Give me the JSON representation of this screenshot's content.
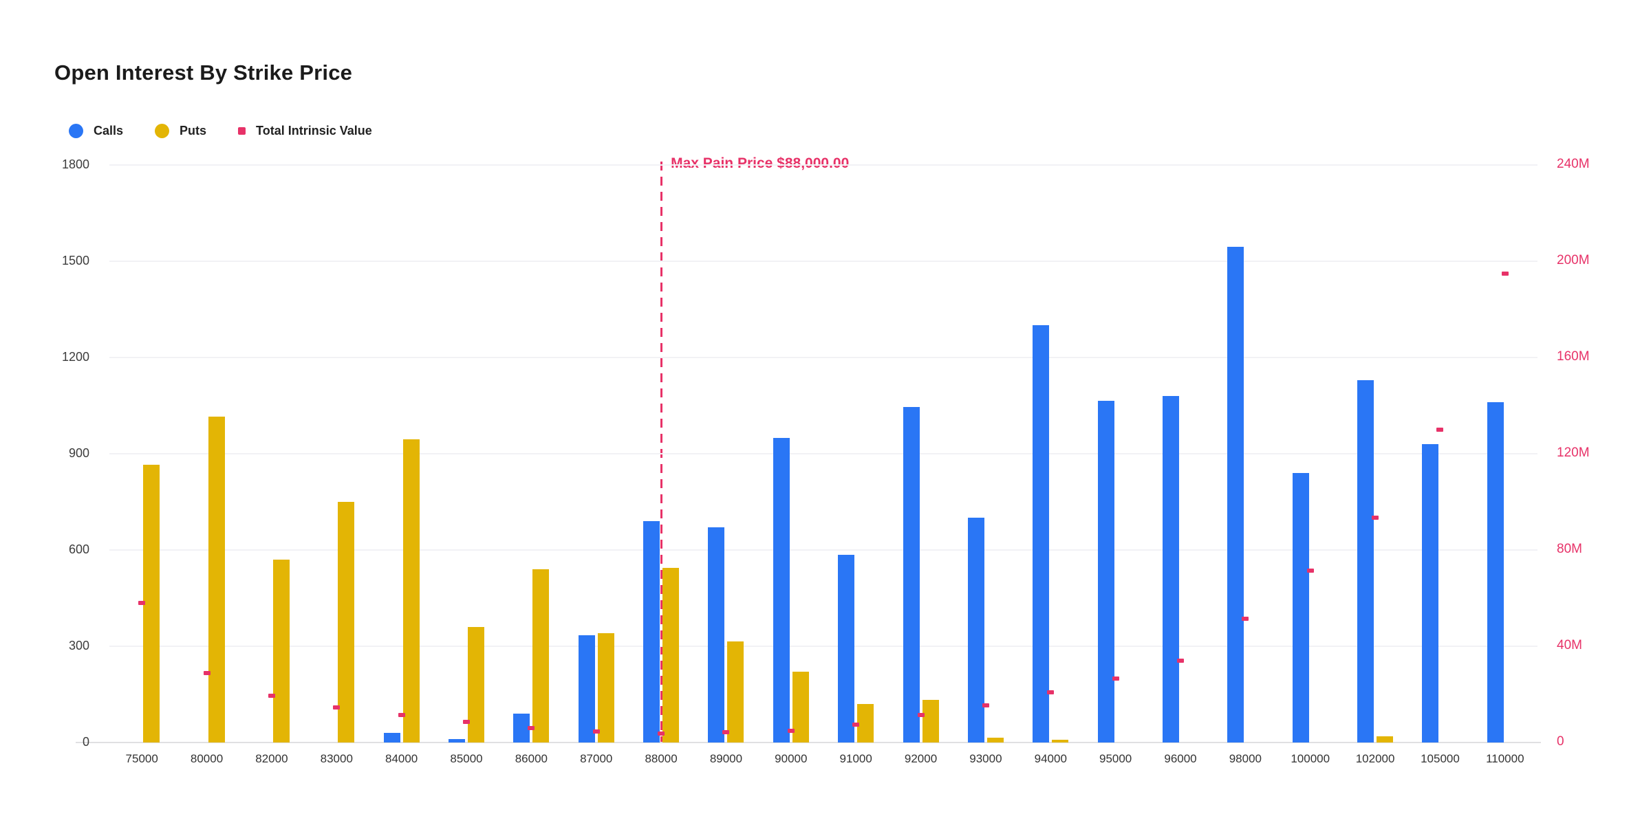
{
  "title": "Open Interest By Strike Price",
  "legend": {
    "items": [
      {
        "label": "Calls",
        "color": "#2a76f5",
        "shape": "circle"
      },
      {
        "label": "Puts",
        "color": "#e3b505",
        "shape": "circle"
      },
      {
        "label": "Total Intrinsic Value",
        "color": "#e73268",
        "shape": "square"
      }
    ]
  },
  "chart_data": {
    "type": "combo-bar-scatter",
    "title": "Open Interest By Strike Price",
    "categories": [
      "75000",
      "80000",
      "82000",
      "83000",
      "84000",
      "85000",
      "86000",
      "87000",
      "88000",
      "89000",
      "90000",
      "91000",
      "92000",
      "93000",
      "94000",
      "95000",
      "96000",
      "98000",
      "100000",
      "102000",
      "105000",
      "110000"
    ],
    "series": [
      {
        "name": "Calls",
        "type": "bar",
        "axis": "left",
        "color": "#2a76f5",
        "values": [
          0,
          0,
          0,
          0,
          30,
          10,
          90,
          335,
          690,
          670,
          950,
          585,
          1045,
          700,
          1300,
          1065,
          1080,
          1545,
          840,
          1130,
          930,
          1060
        ]
      },
      {
        "name": "Puts",
        "type": "bar",
        "axis": "left",
        "color": "#e3b505",
        "values": [
          865,
          1015,
          570,
          750,
          945,
          360,
          540,
          340,
          545,
          315,
          220,
          120,
          133,
          15,
          8,
          0,
          0,
          0,
          0,
          20,
          0,
          0
        ]
      },
      {
        "name": "Total Intrinsic Value",
        "type": "scatter",
        "axis": "right",
        "color": "#e73268",
        "values_millions": [
          58,
          29,
          19.5,
          14.5,
          11.5,
          8.5,
          6,
          4.5,
          3.7,
          4.3,
          5,
          7.5,
          11.5,
          15.5,
          21,
          26.5,
          34,
          51.5,
          71.5,
          93.5,
          130,
          195
        ]
      }
    ],
    "left_axis": {
      "min": 0,
      "max": 1800,
      "ticks": [
        0,
        300,
        600,
        900,
        1200,
        1500,
        1800
      ],
      "label_color": "#3c3c3c"
    },
    "right_axis": {
      "min": 0,
      "max": 240000000,
      "tick_labels": [
        "0",
        "40M",
        "80M",
        "120M",
        "160M",
        "200M",
        "240M"
      ],
      "label_color": "#e73268"
    },
    "grid": true,
    "legend_position": "top-left",
    "annotation": {
      "label": "Max Pain Price $88,000.00",
      "category": "88000",
      "color": "#e73268"
    }
  }
}
